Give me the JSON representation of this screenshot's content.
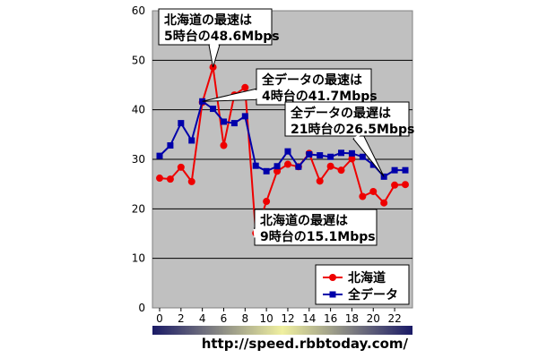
{
  "chart_data": {
    "type": "line",
    "x": [
      0,
      1,
      2,
      3,
      4,
      5,
      6,
      7,
      8,
      9,
      10,
      11,
      12,
      13,
      14,
      15,
      16,
      17,
      18,
      19,
      20,
      21,
      22,
      23
    ],
    "x_tick_labels": [
      "0",
      "2",
      "4",
      "6",
      "8",
      "10",
      "12",
      "14",
      "16",
      "18",
      "20",
      "22"
    ],
    "ylim": [
      0,
      60
    ],
    "y_tick_labels": [
      "0",
      "10",
      "20",
      "30",
      "40",
      "50",
      "60"
    ],
    "grid": true,
    "legend_position": "bottom-right",
    "series": [
      {
        "name": "北海道",
        "color": "#ee0000",
        "marker": "circle",
        "values": [
          26.2,
          26.0,
          28.4,
          25.5,
          41.5,
          48.6,
          32.8,
          43.0,
          44.5,
          15.1,
          21.5,
          27.6,
          29.0,
          28.5,
          31.2,
          25.6,
          28.6,
          27.8,
          30.1,
          22.5,
          23.5,
          21.2,
          24.8,
          24.9
        ]
      },
      {
        "name": "全データ",
        "color": "#0000aa",
        "marker": "square",
        "values": [
          30.7,
          32.8,
          37.3,
          33.8,
          41.7,
          40.2,
          37.6,
          37.3,
          38.7,
          28.7,
          27.6,
          28.6,
          31.6,
          28.5,
          31.0,
          30.8,
          30.5,
          31.3,
          31.2,
          30.5,
          28.9,
          26.5,
          27.8,
          27.8
        ]
      }
    ],
    "annotations": [
      {
        "line1": "北海道の最速は",
        "line2": "5時台の48.6Mbps"
      },
      {
        "line1": "全データの最速は",
        "line2": "4時台の41.7Mbps"
      },
      {
        "line1": "全データの最遅は",
        "line2": "21時台の26.5Mbps"
      },
      {
        "line1": "北海道の最遅は",
        "line2": "9時台の15.1Mbps"
      }
    ],
    "source": "http://speed.rbbtoday.com/"
  },
  "colors": {
    "plot_background": "#c0c0c0",
    "gradient_start": "#1a1a66",
    "gradient_mid": "#f0f0a0",
    "gradient_end": "#1a1a66"
  }
}
